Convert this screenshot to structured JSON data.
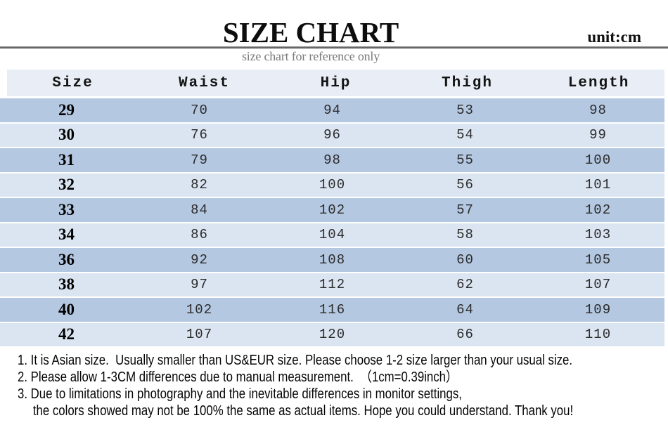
{
  "header": {
    "title": "SIZE CHART",
    "unit": "unit:cm",
    "subtitle": "size chart for reference only"
  },
  "chart_data": {
    "type": "table",
    "title": "SIZE CHART",
    "unit": "cm",
    "columns": [
      "Size",
      "Waist",
      "Hip",
      "Thigh",
      "Length"
    ],
    "rows": [
      [
        "29",
        "70",
        "94",
        "53",
        "98"
      ],
      [
        "30",
        "76",
        "96",
        "54",
        "99"
      ],
      [
        "31",
        "79",
        "98",
        "55",
        "100"
      ],
      [
        "32",
        "82",
        "100",
        "56",
        "101"
      ],
      [
        "33",
        "84",
        "102",
        "57",
        "102"
      ],
      [
        "34",
        "86",
        "104",
        "58",
        "103"
      ],
      [
        "36",
        "92",
        "108",
        "60",
        "105"
      ],
      [
        "38",
        "97",
        "112",
        "62",
        "107"
      ],
      [
        "40",
        "102",
        "116",
        "64",
        "109"
      ],
      [
        "42",
        "107",
        "120",
        "66",
        "110"
      ]
    ]
  },
  "notes": [
    {
      "text": "1. It is Asian size.  Usually smaller than US&EUR size. Please choose 1-2 size larger than your usual size.",
      "indent": false
    },
    {
      "text": "2. Please allow 1-3CM differences due to manual measurement.  （1cm=0.39inch）",
      "indent": false
    },
    {
      "text": "3. Due to limitations in photography and the inevitable differences in monitor settings,",
      "indent": false
    },
    {
      "text": "the colors showed may not be 100% the same as actual items. Hope you could understand. Thank you!",
      "indent": true
    }
  ],
  "colors": {
    "header_row_bg": "#e9eef6",
    "row_dark": "#b5c8e1",
    "row_light": "#dbe5f1",
    "divider": "#4a4a4a",
    "subtitle_text": "#7b7b7b"
  }
}
